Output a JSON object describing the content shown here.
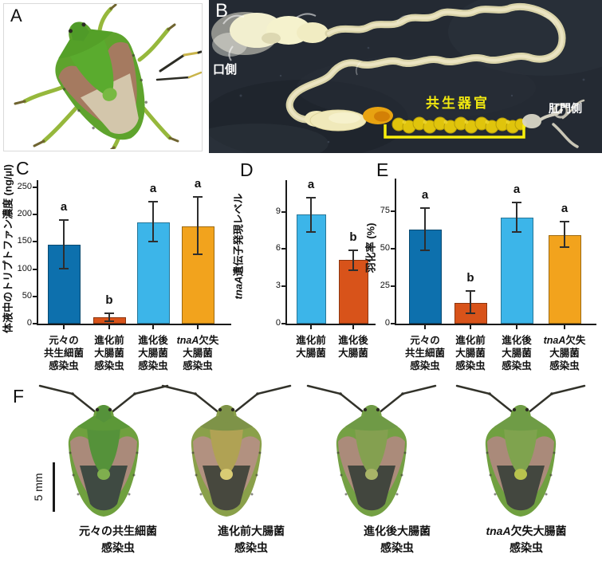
{
  "panels": {
    "a": {
      "label": "A",
      "colors": {
        "rim": "#5ea32d",
        "pron": "#54a028",
        "scut": "#5aab2e",
        "tip": "#78b942",
        "wings": "#a57a60",
        "mem": "#d3c6ab",
        "head": "#4f9a28",
        "legs": "#96b83c"
      }
    },
    "b": {
      "label": "B",
      "mouth_side": "口側",
      "symbiotic_organ": "共生器官",
      "anus_side": "肛門側",
      "organ_color": "#f2e90f"
    },
    "c": {
      "label": "C"
    },
    "d": {
      "label": "D"
    },
    "e": {
      "label": "E"
    },
    "f": {
      "label": "F",
      "scale_bar": "5 mm",
      "specimens": [
        {
          "name_line1": "元々の共生細菌",
          "name_line2": "感染虫",
          "colors": {
            "rim": "#6fa03e",
            "pron": "#5c9838",
            "scut": "#55923a",
            "tip": "#7fae4e",
            "wings": "#aa8a7a",
            "mem": "#3f4a42",
            "head": "#55923a"
          }
        },
        {
          "name_line1": "進化前大腸菌",
          "name_line2": "感染虫",
          "colors": {
            "rim": "#8aa04a",
            "pron": "#7e9348",
            "scut": "#b0a254",
            "tip": "#d9cc74",
            "wings": "#b29180",
            "mem": "#47483e",
            "head": "#7e9348"
          }
        },
        {
          "name_line1": "進化後大腸菌",
          "name_line2": "感染虫",
          "colors": {
            "rim": "#74a044",
            "pron": "#6f9a46",
            "scut": "#84a050",
            "tip": "#a9b468",
            "wings": "#ab8b7a",
            "mem": "#42463e",
            "head": "#6f9a46"
          }
        },
        {
          "name_line1": "tnaA欠失大腸菌",
          "name_line2": "感染虫",
          "colors": {
            "rim": "#70a040",
            "pron": "#6f9c46",
            "scut": "#7fa34e",
            "tip": "#b8c24e",
            "wings": "#aa8a7a",
            "mem": "#43473f",
            "head": "#6f9c46"
          }
        }
      ]
    }
  },
  "chart_data": [
    {
      "panel": "C",
      "type": "bar",
      "ylabel": "体液中のトリプトファン濃度 (ng/µl)",
      "ylim": [
        0,
        260
      ],
      "yticks": [
        0,
        50,
        100,
        150,
        200,
        250
      ],
      "categories": [
        [
          "元々の",
          "共生細菌",
          "感染虫"
        ],
        [
          "進化前",
          "大腸菌",
          "感染虫"
        ],
        [
          "進化後",
          "大腸菌",
          "感染虫"
        ],
        [
          "tnaA欠失",
          "大腸菌",
          "感染虫"
        ]
      ],
      "values": [
        145,
        12,
        186,
        179
      ],
      "error_low": [
        101,
        5,
        151,
        127
      ],
      "error_high": [
        190,
        19,
        223,
        232
      ],
      "sig_letters": [
        "a",
        "b",
        "a",
        "a"
      ],
      "bar_colors": [
        "#0d70ad",
        "#d8531a",
        "#3cb5e9",
        "#f2a31d"
      ]
    },
    {
      "panel": "D",
      "type": "bar",
      "ylabel": "tnaA遺伝子発現レベル",
      "ylim": [
        0,
        11
      ],
      "yticks": [
        0,
        3,
        6,
        9
      ],
      "categories": [
        [
          "進化前",
          "大腸菌"
        ],
        [
          "進化後",
          "大腸菌"
        ]
      ],
      "values": [
        8.8,
        5.1
      ],
      "error_low": [
        7.4,
        4.3
      ],
      "error_high": [
        10.1,
        5.9
      ],
      "sig_letters": [
        "a",
        "b"
      ],
      "bar_colors": [
        "#3cb5e9",
        "#d8531a"
      ]
    },
    {
      "panel": "E",
      "type": "bar",
      "ylabel": "羽化率 (%)",
      "ylim": [
        0,
        95
      ],
      "yticks": [
        0,
        25,
        50,
        75
      ],
      "categories": [
        [
          "元々の",
          "共生細菌",
          "感染虫"
        ],
        [
          "進化前",
          "大腸菌",
          "感染虫"
        ],
        [
          "進化後",
          "大腸菌",
          "感染虫"
        ],
        [
          "tnaA欠失",
          "大腸菌",
          "感染虫"
        ]
      ],
      "values": [
        63,
        14,
        71,
        59
      ],
      "error_low": [
        49,
        7,
        61,
        51
      ],
      "error_high": [
        77,
        22,
        81,
        68
      ],
      "sig_letters": [
        "a",
        "b",
        "a",
        "a"
      ],
      "bar_colors": [
        "#0d70ad",
        "#d8531a",
        "#3cb5e9",
        "#f2a31d"
      ]
    }
  ]
}
